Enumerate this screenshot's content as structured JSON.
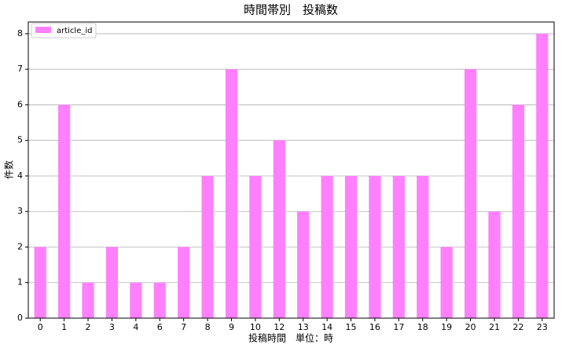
{
  "chart_data": {
    "type": "bar",
    "title": "時間帯別　投稿数",
    "x_label": "投稿時間　単位：時",
    "y_label": "件数",
    "categories": [
      "0",
      "1",
      "2",
      "3",
      "4",
      "6",
      "7",
      "8",
      "9",
      "10",
      "12",
      "13",
      "14",
      "15",
      "16",
      "17",
      "18",
      "19",
      "20",
      "21",
      "22",
      "23"
    ],
    "series": [
      {
        "name": "article_id",
        "color": "#ff80ff",
        "values": [
          2,
          6,
          1,
          2,
          1,
          1,
          2,
          4,
          7,
          4,
          5,
          3,
          4,
          4,
          4,
          4,
          4,
          2,
          7,
          3,
          6,
          8
        ]
      }
    ],
    "ylim": [
      0,
      8.33
    ],
    "yticks": [
      0,
      1,
      2,
      3,
      4,
      5,
      6,
      7,
      8
    ],
    "grid": true,
    "legend": "upper left"
  }
}
